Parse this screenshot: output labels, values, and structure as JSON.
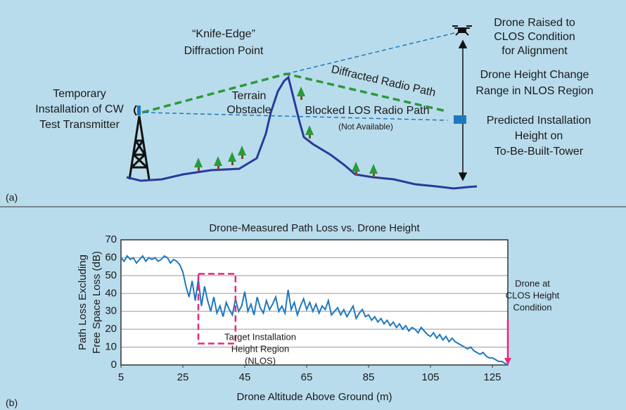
{
  "diagram": {
    "panel_a": "(a)",
    "panel_b": "(b)",
    "transmitter": [
      "Temporary",
      "Installation of CW",
      "Test Transmitter"
    ],
    "knife_edge": [
      "“Knife-Edge”",
      "Diffraction Point"
    ],
    "terrain": [
      "Terrain",
      "Obstacle"
    ],
    "diffracted": "Diffracted Radio Path",
    "blocked": "Blocked LOS Radio Path",
    "not_available": "(Not Available)",
    "drone": [
      "Drone Raised to",
      "CLOS Condition",
      "for Alignment"
    ],
    "height_change": [
      "Drone Height Change",
      "Range in NLOS Region"
    ],
    "predicted": [
      "Predicted Installation",
      "Height on",
      "To-Be-Built-Tower"
    ]
  },
  "chart_data": {
    "type": "line",
    "title": "Drone-Measured Path Loss vs. Drone Height",
    "x_label": "Drone Altitude Above Ground (m)",
    "y_label": [
      "Path Loss Excluding",
      "Free Space Loss (dB)"
    ],
    "color": "#1e78be",
    "x": [
      5,
      6,
      7,
      8,
      9,
      10,
      11,
      12,
      13,
      14,
      15,
      16,
      17,
      18,
      19,
      20,
      21,
      22,
      23,
      24,
      25,
      26,
      27,
      28,
      29,
      30,
      31,
      32,
      33,
      34,
      35,
      36,
      37,
      38,
      39,
      40,
      41,
      42,
      43,
      44,
      45,
      46,
      47,
      48,
      49,
      50,
      51,
      52,
      53,
      54,
      55,
      56,
      57,
      58,
      59,
      60,
      61,
      62,
      63,
      64,
      65,
      66,
      67,
      68,
      69,
      70,
      71,
      72,
      73,
      74,
      75,
      76,
      77,
      78,
      79,
      80,
      81,
      82,
      83,
      84,
      85,
      86,
      87,
      88,
      89,
      90,
      91,
      92,
      93,
      94,
      95,
      96,
      97,
      98,
      99,
      100,
      101,
      102,
      103,
      104,
      105,
      106,
      107,
      108,
      109,
      110,
      111,
      112,
      113,
      114,
      115,
      116,
      117,
      118,
      119,
      120,
      121,
      122,
      123,
      124,
      125,
      126,
      127,
      128,
      129,
      130
    ],
    "values": [
      60,
      58,
      61,
      59,
      60,
      57,
      59,
      61,
      58,
      60,
      59,
      60,
      58,
      59,
      61,
      60,
      57,
      59,
      58,
      56,
      52,
      44,
      38,
      47,
      36,
      48,
      33,
      44,
      36,
      30,
      38,
      29,
      33,
      27,
      35,
      31,
      28,
      37,
      30,
      33,
      41,
      30,
      34,
      28,
      38,
      32,
      29,
      36,
      31,
      34,
      38,
      30,
      33,
      29,
      42,
      31,
      35,
      28,
      33,
      37,
      31,
      35,
      30,
      34,
      29,
      33,
      31,
      36,
      28,
      30,
      32,
      28,
      31,
      27,
      30,
      33,
      26,
      29,
      31,
      27,
      28,
      25,
      27,
      24,
      26,
      23,
      25,
      22,
      24,
      21,
      23,
      20,
      22,
      19,
      21,
      20,
      18,
      21,
      19,
      17,
      16,
      18,
      15,
      17,
      14,
      16,
      13,
      15,
      13,
      12,
      11,
      10,
      9,
      10,
      8,
      7,
      6,
      7,
      5,
      4,
      4,
      3,
      2,
      2,
      1,
      0
    ],
    "xlim": [
      5,
      130
    ],
    "ylim": [
      0,
      70
    ],
    "xticks": [
      5,
      25,
      45,
      65,
      85,
      105,
      125
    ],
    "yticks": [
      0,
      10,
      20,
      30,
      40,
      50,
      60,
      70
    ],
    "grid": true,
    "region": {
      "label": [
        "Target Installation",
        "Height Region",
        "(NLOS)"
      ],
      "xlim": [
        30,
        42
      ],
      "ylim": [
        12,
        51
      ],
      "color": "#e8287a"
    },
    "marker": {
      "label": [
        "Drone at",
        "CLOS Height",
        "Condition"
      ],
      "x": 130,
      "color": "#e8287a"
    }
  }
}
